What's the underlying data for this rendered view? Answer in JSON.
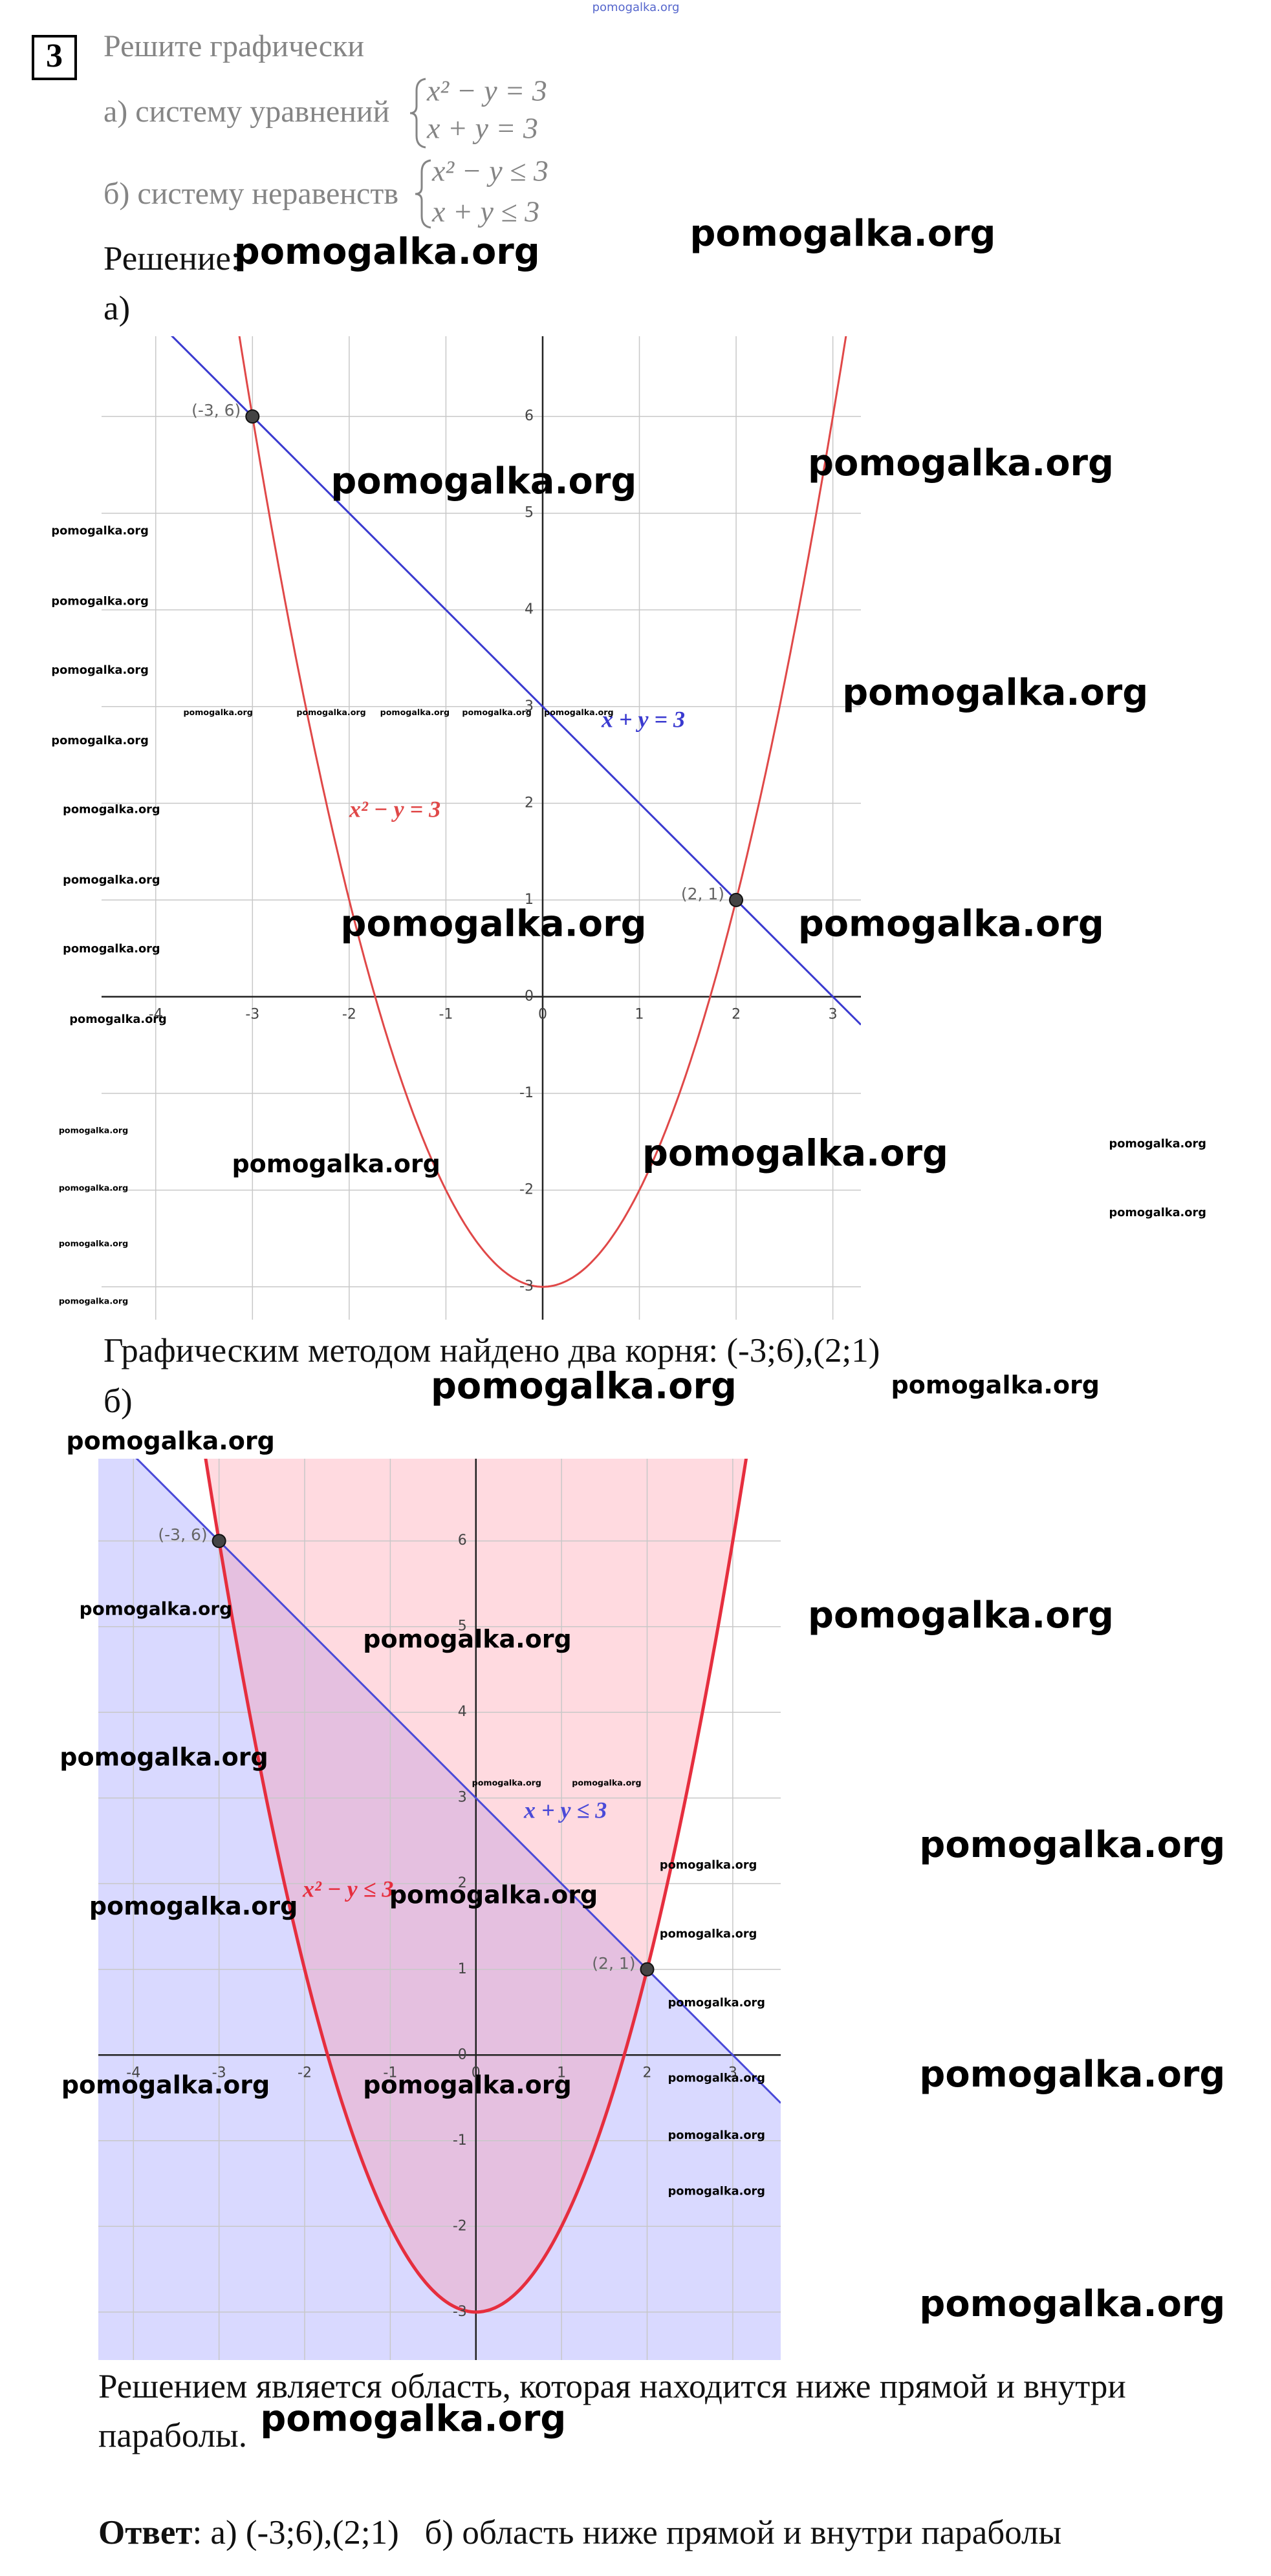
{
  "site_mark": "pomogalka.org",
  "task": {
    "number": "3",
    "title": "Решите графически",
    "a_label": "а) систему уравнений",
    "a_system": [
      "x² − y = 3",
      "x + y = 3"
    ],
    "b_label": "б) систему неравенств",
    "b_system": [
      "x² − y ≤ 3",
      "x + y ≤ 3"
    ]
  },
  "solution_label": "Решение:",
  "part_a": "а)",
  "graph_a": {
    "xlim": [
      -4.56,
      3.29
    ],
    "ylim": [
      -3.34,
      6.83
    ],
    "xticks": [
      -4,
      -3,
      -2,
      -1,
      0,
      1,
      2,
      3
    ],
    "yticks": [
      -3,
      -2,
      -1,
      0,
      1,
      2,
      3,
      4,
      5,
      6
    ],
    "line": {
      "label": "x + y = 3",
      "rhs": 3,
      "color": "#3a3ad0"
    },
    "parabola": {
      "label": "x² − y = 3",
      "rhs": 3,
      "color": "#e04848"
    },
    "points": [
      {
        "x": -3,
        "y": 6,
        "label": "(-3, 6)"
      },
      {
        "x": 2,
        "y": 1,
        "label": "(2, 1)"
      }
    ],
    "fill": false
  },
  "result_a": "Графическим методом найдено два корня: (-3;6),(2;1)",
  "part_b": "б)",
  "graph_b": {
    "xlim": [
      -4.41,
      3.56
    ],
    "ylim": [
      -3.56,
      6.96
    ],
    "xticks": [
      -4,
      -3,
      -2,
      -1,
      0,
      1,
      2,
      3
    ],
    "yticks": [
      -3,
      -2,
      -1,
      0,
      1,
      2,
      3,
      4,
      5,
      6
    ],
    "line": {
      "label": "x + y ≤ 3",
      "rhs": 3,
      "color": "#4a4ad8",
      "fill_color": "#9a9aff"
    },
    "parabola": {
      "label": "x² − y ≤ 3",
      "rhs": 3,
      "color": "#e62e3e",
      "fill_color": "#ff8c9e"
    },
    "points": [
      {
        "x": -3,
        "y": 6,
        "label": "(-3, 6)"
      },
      {
        "x": 2,
        "y": 1,
        "label": "(2, 1)"
      }
    ],
    "fill": true
  },
  "conclusion": [
    "Решением является область, которая находится ниже прямой и внутри",
    "параболы."
  ],
  "answer": {
    "label": "Ответ",
    "text": ": а) (-3;6),(2;1)   б) область ниже прямой и внутри параболы"
  }
}
